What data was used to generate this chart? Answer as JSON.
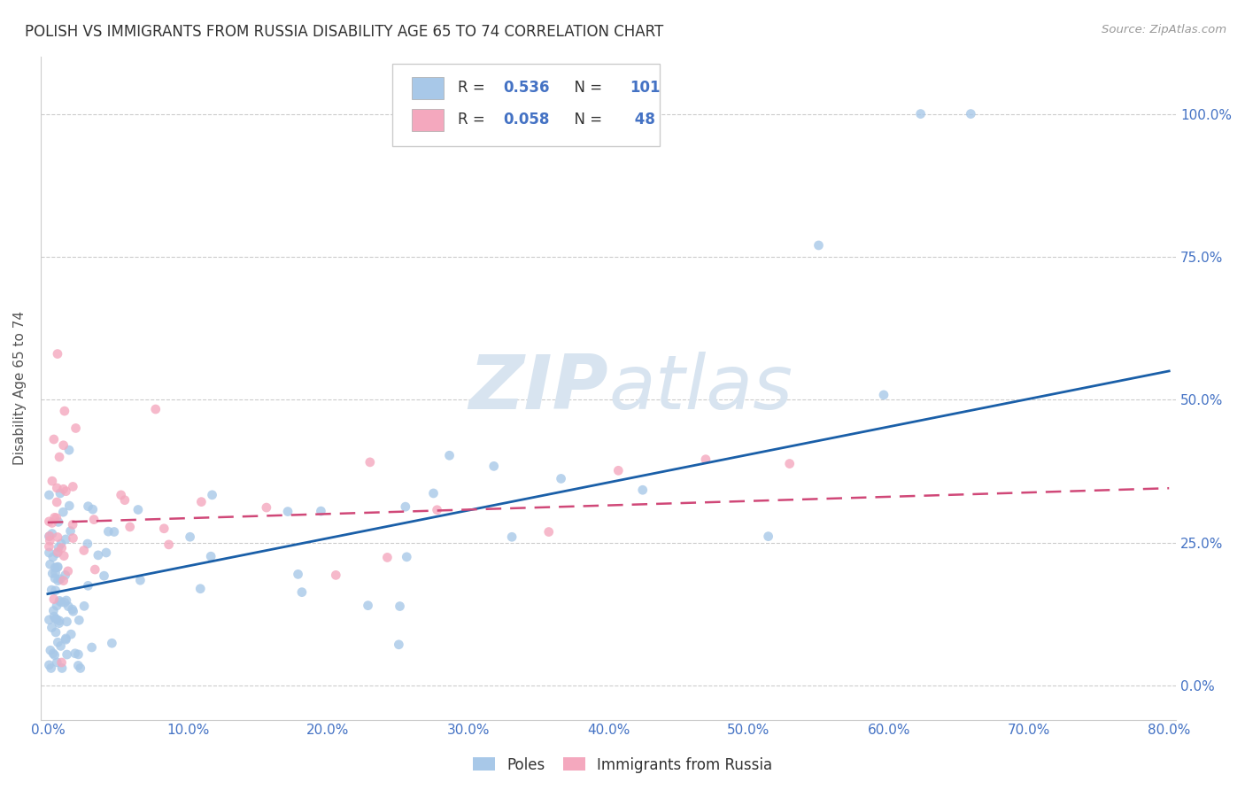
{
  "title": "POLISH VS IMMIGRANTS FROM RUSSIA DISABILITY AGE 65 TO 74 CORRELATION CHART",
  "source": "Source: ZipAtlas.com",
  "ylabel": "Disability Age 65 to 74",
  "legend_label1": "Poles",
  "legend_label2": "Immigrants from Russia",
  "r1": 0.536,
  "n1": 101,
  "r2": 0.058,
  "n2": 48,
  "blue_scatter_color": "#a8c8e8",
  "pink_scatter_color": "#f4a8be",
  "blue_line_color": "#1a5fa8",
  "pink_line_color": "#d04878",
  "title_color": "#333333",
  "axis_tick_color": "#4472c4",
  "ylabel_color": "#555555",
  "background_color": "#ffffff",
  "grid_color": "#cccccc",
  "watermark_color": "#d8e4f0",
  "xlim_min": -0.005,
  "xlim_max": 0.805,
  "ylim_min": -0.06,
  "ylim_max": 1.1,
  "blue_trendline": [
    0.0,
    0.16,
    0.8,
    0.55
  ],
  "pink_trendline": [
    0.0,
    0.285,
    0.8,
    0.345
  ],
  "xtick_positions": [
    0.0,
    0.1,
    0.2,
    0.3,
    0.4,
    0.5,
    0.6,
    0.7,
    0.8
  ],
  "xtick_labels": [
    "0.0%",
    "10.0%",
    "20.0%",
    "30.0%",
    "40.0%",
    "50.0%",
    "60.0%",
    "70.0%",
    "80.0%"
  ],
  "ytick_positions": [
    0.0,
    0.25,
    0.5,
    0.75,
    1.0
  ],
  "ytick_labels": [
    "0.0%",
    "25.0%",
    "50.0%",
    "75.0%",
    "100.0%"
  ]
}
